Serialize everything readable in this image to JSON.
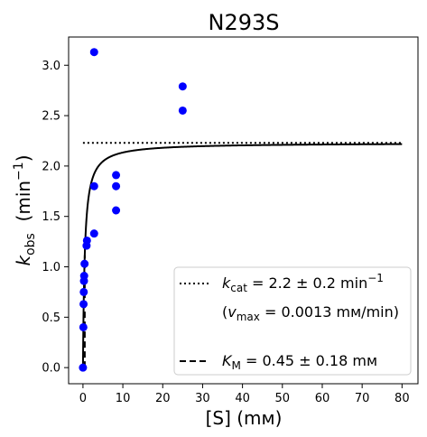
{
  "chart_data": {
    "type": "scatter",
    "title": "N293S",
    "xlabel": "[S] (mм)",
    "ylabel": {
      "base": "k",
      "sub": "obs",
      "unit_pre": "(min",
      "unit_sup": "−1",
      "unit_post": ")"
    },
    "xlim": [
      -3.6,
      84
    ],
    "ylim": [
      -0.16,
      3.28
    ],
    "x_ticks": [
      0,
      10,
      20,
      30,
      40,
      50,
      60,
      70,
      80
    ],
    "y_ticks": [
      0.0,
      0.5,
      1.0,
      1.5,
      2.0,
      2.5,
      3.0
    ],
    "x_tick_labels": [
      "0",
      "10",
      "20",
      "30",
      "40",
      "50",
      "60",
      "70",
      "80"
    ],
    "y_tick_labels": [
      "0.0",
      "0.5",
      "1.0",
      "1.5",
      "2.0",
      "2.5",
      "3.0"
    ],
    "grid": false,
    "legend_position": "lower right",
    "colors": {
      "points": "#0000ff",
      "lines": "#000000"
    },
    "points": [
      {
        "x": 0,
        "y": 0.0
      },
      {
        "x": 0.1,
        "y": 0.4
      },
      {
        "x": 0.15,
        "y": 0.63
      },
      {
        "x": 0.2,
        "y": 0.75
      },
      {
        "x": 0.25,
        "y": 0.86
      },
      {
        "x": 0.3,
        "y": 0.91
      },
      {
        "x": 0.4,
        "y": 1.03
      },
      {
        "x": 0.9,
        "y": 1.21
      },
      {
        "x": 1.0,
        "y": 1.26
      },
      {
        "x": 2.8,
        "y": 1.33
      },
      {
        "x": 2.8,
        "y": 1.8
      },
      {
        "x": 2.8,
        "y": 3.13
      },
      {
        "x": 8.3,
        "y": 1.56
      },
      {
        "x": 8.3,
        "y": 1.8
      },
      {
        "x": 8.3,
        "y": 1.91
      },
      {
        "x": 25,
        "y": 2.55
      },
      {
        "x": 25,
        "y": 2.79
      }
    ],
    "fit": {
      "kcat": 2.23,
      "km": 0.45,
      "x_max": 80
    },
    "kcat_line": {
      "y": 2.23,
      "x_range": [
        0,
        80
      ]
    },
    "km_line": {
      "x": 0.45,
      "y_range": [
        0,
        1.115
      ]
    },
    "legend": {
      "kcat_sym": "k",
      "kcat_sub": "cat",
      "kcat_rest": " = 2.2 ± 0.2 min",
      "kcat_sup": "−1",
      "vmax_pre": "(",
      "vmax_sym": "v",
      "vmax_sub": "max",
      "vmax_rest": " = 0.0013 mм/min)",
      "km_sym": "K",
      "km_sub": "M",
      "km_rest": " = 0.45 ± 0.18 mм"
    }
  }
}
